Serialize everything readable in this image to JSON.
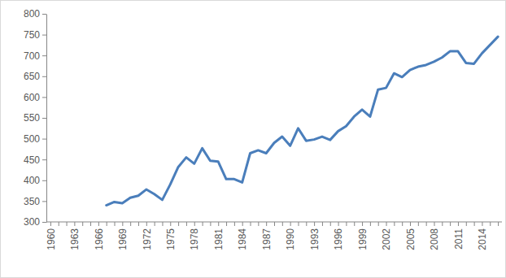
{
  "chart_data": {
    "type": "line",
    "categories": [
      "1960",
      null,
      null,
      "1963",
      null,
      null,
      "1966",
      null,
      null,
      "1969",
      null,
      null,
      "1972",
      null,
      null,
      "1975",
      null,
      null,
      "1978",
      null,
      null,
      "1981",
      null,
      null,
      "1984",
      null,
      null,
      "1987",
      null,
      null,
      "1990",
      null,
      null,
      "1993",
      null,
      null,
      "1996",
      null,
      null,
      "1999",
      null,
      null,
      "2002",
      null,
      null,
      "2005",
      null,
      null,
      "2008",
      null,
      null,
      "2011",
      null,
      null,
      "2014",
      null,
      null
    ],
    "values": [
      null,
      null,
      null,
      null,
      null,
      null,
      null,
      340,
      348,
      345,
      358,
      363,
      378,
      367,
      353,
      390,
      432,
      455,
      440,
      477,
      447,
      445,
      403,
      403,
      395,
      465,
      472,
      465,
      490,
      505,
      483,
      525,
      495,
      498,
      505,
      497,
      518,
      530,
      553,
      570,
      553,
      618,
      622,
      657,
      648,
      665,
      673,
      677,
      685,
      695,
      710,
      710,
      682,
      680,
      705,
      725,
      745
    ],
    "color": "#4a7ebb",
    "ylim": [
      300,
      800
    ],
    "yticks": [
      300,
      350,
      400,
      450,
      500,
      550,
      600,
      650,
      700,
      750,
      800
    ],
    "grid": false
  }
}
